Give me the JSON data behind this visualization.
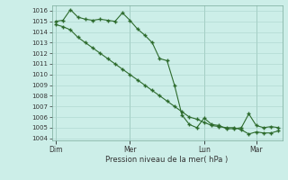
{
  "xlabel": "Pression niveau de la mer( hPa )",
  "bg_color": "#cceee8",
  "grid_color": "#aad4cc",
  "line_color": "#2d6b2d",
  "ylim": [
    1003.8,
    1016.5
  ],
  "yticks": [
    1004,
    1005,
    1006,
    1007,
    1008,
    1009,
    1010,
    1011,
    1012,
    1013,
    1014,
    1015,
    1016
  ],
  "xtick_labels": [
    "Dim",
    "Mer",
    "Lun",
    "Mar"
  ],
  "xtick_positions": [
    0,
    10,
    20,
    27
  ],
  "x_total_min": -0.5,
  "x_total_max": 30.5,
  "line1_x": [
    0,
    1,
    2,
    3,
    4,
    5,
    6,
    7,
    8,
    9,
    10,
    11,
    12,
    13,
    14,
    15,
    16,
    17,
    18,
    19,
    20,
    21,
    22,
    23,
    24,
    25,
    26,
    27,
    28,
    29,
    30
  ],
  "line1_y": [
    1015.0,
    1015.1,
    1016.1,
    1015.4,
    1015.2,
    1015.1,
    1015.2,
    1015.1,
    1015.0,
    1015.8,
    1015.1,
    1014.3,
    1013.7,
    1013.0,
    1011.5,
    1011.3,
    1009.0,
    1006.2,
    1005.3,
    1005.0,
    1005.9,
    1005.3,
    1005.2,
    1004.9,
    1004.9,
    1005.0,
    1006.3,
    1005.2,
    1005.0,
    1005.1,
    1005.0
  ],
  "line2_x": [
    0,
    1,
    2,
    3,
    4,
    5,
    6,
    7,
    8,
    9,
    10,
    11,
    12,
    13,
    14,
    15,
    16,
    17,
    18,
    19,
    20,
    21,
    22,
    23,
    24,
    25,
    26,
    27,
    28,
    29,
    30
  ],
  "line2_y": [
    1014.7,
    1014.5,
    1014.2,
    1013.5,
    1013.0,
    1012.5,
    1012.0,
    1011.5,
    1011.0,
    1010.5,
    1010.0,
    1009.5,
    1009.0,
    1008.5,
    1008.0,
    1007.5,
    1007.0,
    1006.5,
    1006.0,
    1005.8,
    1005.5,
    1005.2,
    1005.1,
    1005.0,
    1005.0,
    1004.8,
    1004.4,
    1004.6,
    1004.5,
    1004.5,
    1004.7
  ]
}
